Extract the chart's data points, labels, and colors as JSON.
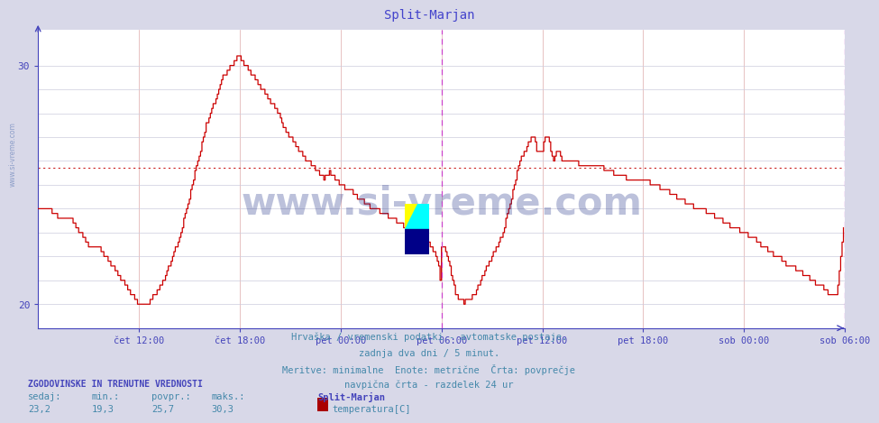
{
  "title": "Split-Marjan",
  "title_color": "#4444cc",
  "bg_color": "#d8d8e8",
  "plot_bg_color": "#ffffff",
  "ylim": [
    19.0,
    31.5
  ],
  "avg_line_y": 25.7,
  "avg_line_color": "#cc2222",
  "line_color": "#cc0000",
  "axis_color": "#4444bb",
  "grid_color_h": "#ddaaaa",
  "grid_color_v": "#ccccdd",
  "vline_color": "#cc44cc",
  "text_color": "#4488aa",
  "footer_line1": "Hrvaška / vremenski podatki - avtomatske postaje.",
  "footer_line2": "zadnja dva dni / 5 minut.",
  "footer_line3": "Meritve: minimalne  Enote: metrične  Črta: povprečje",
  "footer_line4": "navpična črta - razdelek 24 ur",
  "legend_header": "ZGODOVINSKE IN TRENUTNE VREDNOSTI",
  "legend_col1_header": "sedaj:",
  "legend_col2_header": "min.:",
  "legend_col3_header": "povpr.:",
  "legend_col4_header": "maks.:",
  "legend_col1_val": "23,2",
  "legend_col2_val": "19,3",
  "legend_col3_val": "25,7",
  "legend_col4_val": "30,3",
  "legend_station": "Split-Marjan",
  "legend_series": "temperatura[C]",
  "legend_swatch_color": "#aa0000",
  "watermark_text": "www.si-vreme.com",
  "watermark_color": "#223388",
  "watermark_alpha": 0.3,
  "sidebar_text": "www.si-vreme.com",
  "sidebar_color": "#4466aa",
  "sidebar_alpha": 0.5,
  "n_points": 576,
  "vline_positions": [
    288,
    576
  ],
  "x_tick_positions": [
    72,
    144,
    216,
    288,
    360,
    432,
    504,
    576
  ],
  "x_tick_labels": [
    "čet 12:00",
    "čet 18:00",
    "pet 00:00",
    "pet 06:00",
    "pet 12:00",
    "pet 18:00",
    "sob 00:00",
    "sob 06:00"
  ]
}
